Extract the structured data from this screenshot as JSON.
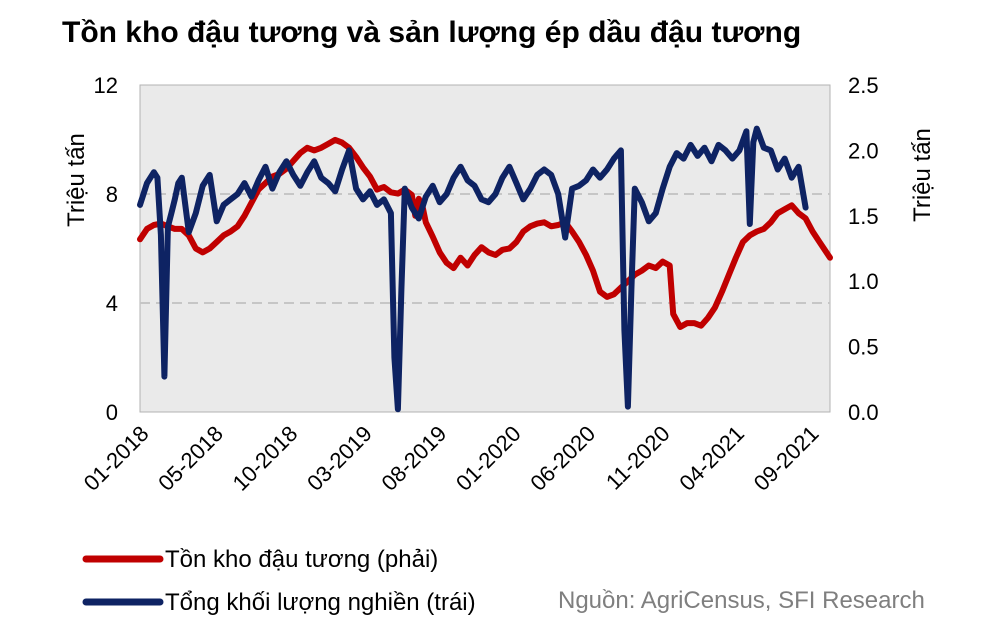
{
  "chart_data": {
    "type": "line",
    "title": "Tồn kho đậu tương và sản lượng ép dầu đậu tương",
    "left_axis": {
      "label": "Triệu tấn",
      "range": [
        0,
        12
      ],
      "ticks": [
        "0",
        "4",
        "8",
        "12"
      ]
    },
    "right_axis": {
      "label": "Triệu tấn",
      "range": [
        0,
        2.5
      ],
      "ticks": [
        "0.0",
        "0.5",
        "1.0",
        "1.5",
        "2.0",
        "2.5"
      ]
    },
    "x_ticks": [
      "01-2018",
      "05-2018",
      "10-2018",
      "03-2019",
      "08-2019",
      "01-2020",
      "06-2020",
      "11-2020",
      "04-2021",
      "09-2021"
    ],
    "gridlines": "dashed, horizontal",
    "legend_position": "bottom-left",
    "x_range": [
      0,
      198
    ],
    "series": [
      {
        "name": "Tồn kho đậu tương (phải)",
        "axis": "right",
        "color": "#C00000",
        "points": [
          [
            0,
            1.32
          ],
          [
            2,
            1.4
          ],
          [
            4,
            1.43
          ],
          [
            6,
            1.44
          ],
          [
            8,
            1.42
          ],
          [
            10,
            1.4
          ],
          [
            12,
            1.4
          ],
          [
            14,
            1.35
          ],
          [
            16,
            1.25
          ],
          [
            18,
            1.22
          ],
          [
            20,
            1.25
          ],
          [
            22,
            1.3
          ],
          [
            24,
            1.35
          ],
          [
            26,
            1.38
          ],
          [
            28,
            1.42
          ],
          [
            30,
            1.5
          ],
          [
            32,
            1.6
          ],
          [
            34,
            1.7
          ],
          [
            36,
            1.75
          ],
          [
            38,
            1.8
          ],
          [
            40,
            1.82
          ],
          [
            42,
            1.86
          ],
          [
            44,
            1.92
          ],
          [
            46,
            1.98
          ],
          [
            48,
            2.02
          ],
          [
            50,
            2.0
          ],
          [
            52,
            2.02
          ],
          [
            54,
            2.05
          ],
          [
            56,
            2.08
          ],
          [
            58,
            2.06
          ],
          [
            60,
            2.02
          ],
          [
            62,
            1.95
          ],
          [
            64,
            1.87
          ],
          [
            66,
            1.8
          ],
          [
            68,
            1.7
          ],
          [
            70,
            1.72
          ],
          [
            72,
            1.68
          ],
          [
            74,
            1.67
          ],
          [
            76,
            1.7
          ],
          [
            78,
            1.66
          ],
          [
            79,
            1.5
          ],
          [
            80,
            1.63
          ],
          [
            81,
            1.58
          ],
          [
            82,
            1.45
          ],
          [
            84,
            1.34
          ],
          [
            86,
            1.22
          ],
          [
            88,
            1.14
          ],
          [
            90,
            1.1
          ],
          [
            92,
            1.18
          ],
          [
            94,
            1.12
          ],
          [
            96,
            1.2
          ],
          [
            98,
            1.26
          ],
          [
            100,
            1.22
          ],
          [
            102,
            1.2
          ],
          [
            104,
            1.24
          ],
          [
            106,
            1.25
          ],
          [
            108,
            1.3
          ],
          [
            110,
            1.38
          ],
          [
            112,
            1.42
          ],
          [
            114,
            1.44
          ],
          [
            116,
            1.45
          ],
          [
            118,
            1.42
          ],
          [
            120,
            1.43
          ],
          [
            122,
            1.45
          ],
          [
            124,
            1.38
          ],
          [
            126,
            1.3
          ],
          [
            128,
            1.2
          ],
          [
            130,
            1.08
          ],
          [
            132,
            0.92
          ],
          [
            134,
            0.88
          ],
          [
            136,
            0.9
          ],
          [
            138,
            0.95
          ],
          [
            140,
            1.0
          ],
          [
            142,
            1.05
          ],
          [
            144,
            1.08
          ],
          [
            146,
            1.12
          ],
          [
            148,
            1.1
          ],
          [
            150,
            1.15
          ],
          [
            152,
            1.12
          ],
          [
            153,
            0.75
          ],
          [
            155,
            0.65
          ],
          [
            157,
            0.68
          ],
          [
            159,
            0.68
          ],
          [
            161,
            0.66
          ],
          [
            163,
            0.72
          ],
          [
            165,
            0.8
          ],
          [
            167,
            0.92
          ],
          [
            169,
            1.05
          ],
          [
            171,
            1.18
          ],
          [
            173,
            1.3
          ],
          [
            175,
            1.35
          ],
          [
            177,
            1.38
          ],
          [
            179,
            1.4
          ],
          [
            181,
            1.45
          ],
          [
            183,
            1.52
          ],
          [
            185,
            1.55
          ],
          [
            187,
            1.58
          ],
          [
            189,
            1.52
          ],
          [
            191,
            1.48
          ],
          [
            193,
            1.38
          ],
          [
            195,
            1.3
          ],
          [
            198,
            1.18
          ]
        ]
      },
      {
        "name": "Tổng khối lượng nghiền (trái)",
        "axis": "left",
        "color": "#0E2363",
        "points": [
          [
            0,
            7.6
          ],
          [
            2,
            8.4
          ],
          [
            4,
            8.8
          ],
          [
            5,
            8.6
          ],
          [
            6,
            6.5
          ],
          [
            7,
            1.3
          ],
          [
            8,
            6.8
          ],
          [
            9,
            7.3
          ],
          [
            10,
            7.8
          ],
          [
            11,
            8.4
          ],
          [
            12,
            8.6
          ],
          [
            14,
            6.6
          ],
          [
            16,
            7.3
          ],
          [
            18,
            8.3
          ],
          [
            20,
            8.7
          ],
          [
            22,
            7.0
          ],
          [
            24,
            7.6
          ],
          [
            26,
            7.8
          ],
          [
            28,
            8.0
          ],
          [
            30,
            8.4
          ],
          [
            32,
            7.9
          ],
          [
            34,
            8.5
          ],
          [
            36,
            9.0
          ],
          [
            38,
            8.2
          ],
          [
            40,
            8.8
          ],
          [
            42,
            9.2
          ],
          [
            44,
            8.7
          ],
          [
            46,
            8.3
          ],
          [
            48,
            8.8
          ],
          [
            50,
            9.2
          ],
          [
            52,
            8.6
          ],
          [
            54,
            8.4
          ],
          [
            56,
            8.1
          ],
          [
            58,
            8.9
          ],
          [
            60,
            9.6
          ],
          [
            62,
            8.2
          ],
          [
            64,
            7.8
          ],
          [
            66,
            8.1
          ],
          [
            68,
            7.6
          ],
          [
            70,
            7.8
          ],
          [
            72,
            7.3
          ],
          [
            73,
            2.0
          ],
          [
            74,
            0.1
          ],
          [
            75,
            4.5
          ],
          [
            76,
            8.2
          ],
          [
            78,
            7.5
          ],
          [
            80,
            7.1
          ],
          [
            82,
            7.9
          ],
          [
            84,
            8.3
          ],
          [
            86,
            7.7
          ],
          [
            88,
            8.0
          ],
          [
            90,
            8.6
          ],
          [
            92,
            9.0
          ],
          [
            94,
            8.5
          ],
          [
            96,
            8.3
          ],
          [
            98,
            7.8
          ],
          [
            100,
            7.7
          ],
          [
            102,
            8.0
          ],
          [
            104,
            8.6
          ],
          [
            106,
            9.0
          ],
          [
            108,
            8.4
          ],
          [
            110,
            7.8
          ],
          [
            112,
            8.2
          ],
          [
            114,
            8.7
          ],
          [
            116,
            8.9
          ],
          [
            118,
            8.7
          ],
          [
            120,
            8.0
          ],
          [
            122,
            6.4
          ],
          [
            124,
            8.2
          ],
          [
            126,
            8.3
          ],
          [
            128,
            8.5
          ],
          [
            130,
            8.9
          ],
          [
            132,
            8.6
          ],
          [
            134,
            8.9
          ],
          [
            136,
            9.3
          ],
          [
            138,
            9.6
          ],
          [
            139,
            3.0
          ],
          [
            140,
            0.2
          ],
          [
            141,
            4.5
          ],
          [
            142,
            8.2
          ],
          [
            144,
            7.7
          ],
          [
            146,
            7.0
          ],
          [
            148,
            7.3
          ],
          [
            150,
            8.2
          ],
          [
            152,
            9.0
          ],
          [
            154,
            9.5
          ],
          [
            156,
            9.3
          ],
          [
            158,
            9.8
          ],
          [
            160,
            9.4
          ],
          [
            162,
            9.7
          ],
          [
            164,
            9.2
          ],
          [
            166,
            9.8
          ],
          [
            168,
            9.6
          ],
          [
            170,
            9.3
          ],
          [
            172,
            9.6
          ],
          [
            174,
            10.3
          ],
          [
            175,
            6.9
          ],
          [
            176,
            9.9
          ],
          [
            177,
            10.4
          ],
          [
            179,
            9.7
          ],
          [
            181,
            9.6
          ],
          [
            183,
            8.9
          ],
          [
            185,
            9.3
          ],
          [
            187,
            8.6
          ],
          [
            189,
            9.0
          ],
          [
            191,
            7.5
          ]
        ]
      }
    ]
  },
  "legend": {
    "items": [
      {
        "label": "Tồn kho đậu tương (phải)",
        "color": "#C00000"
      },
      {
        "label": "Tổng khối lượng nghiền (trái)",
        "color": "#0E2363"
      }
    ]
  },
  "source": "Nguồn: AgriCensus, SFI Research"
}
